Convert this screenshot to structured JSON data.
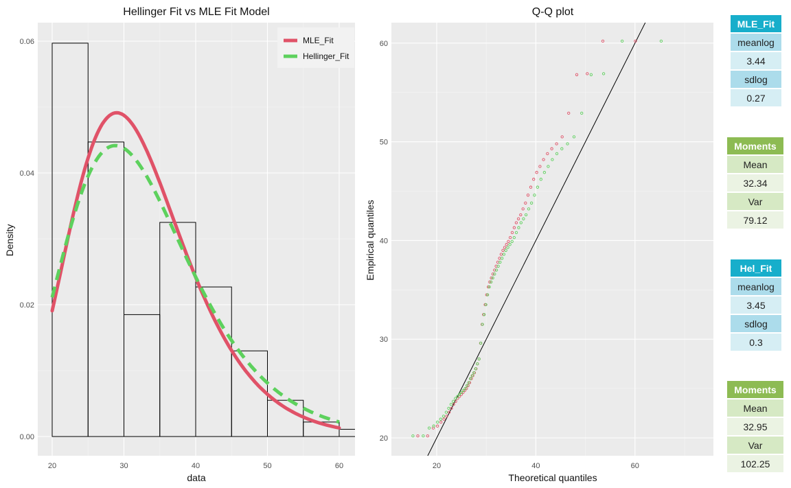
{
  "colors": {
    "mle": "#e05268",
    "hellinger": "#5dd15d",
    "panel": "#ebebeb"
  },
  "chart_data": [
    {
      "type": "bar",
      "title": "Hellinger Fit vs MLE Fit Model",
      "xlabel": "data",
      "ylabel": "Density",
      "xlim": [
        20,
        62
      ],
      "ylim": [
        0,
        0.06
      ],
      "xticks": [
        20,
        30,
        40,
        50,
        60
      ],
      "yticks": [
        "0.00",
        "0.02",
        "0.04",
        "0.06"
      ],
      "histogram": {
        "bin_edges": [
          20,
          25,
          30,
          35,
          40,
          45,
          50,
          55,
          60,
          65
        ],
        "density": [
          0.0597,
          0.0447,
          0.0185,
          0.0325,
          0.0227,
          0.013,
          0.0055,
          0.0022,
          0.0011
        ]
      },
      "legend": {
        "position": "top-right",
        "entries": [
          "MLE_Fit",
          "Hellinger_Fit"
        ]
      },
      "series": [
        {
          "name": "MLE_Fit",
          "meanlog": 3.44,
          "sdlog": 0.27,
          "x_range": [
            20,
            60
          ]
        },
        {
          "name": "Hellinger_Fit",
          "meanlog": 3.45,
          "sdlog": 0.3,
          "x_range": [
            20,
            60
          ]
        }
      ]
    },
    {
      "type": "scatter",
      "title": "Q-Q plot",
      "xlabel": "Theoretical quantiles",
      "ylabel": "Empirical quantiles",
      "xlim": [
        10,
        75
      ],
      "ylim": [
        18,
        62
      ],
      "xticks": [
        20,
        40,
        60
      ],
      "yticks": [
        20,
        30,
        40,
        50,
        60
      ],
      "reference_line": {
        "slope": 1,
        "intercept": 0
      },
      "empirical_sorted": [
        20.2,
        20.2,
        21,
        21.2,
        21.6,
        21.9,
        22.2,
        22.6,
        23,
        23.4,
        23.7,
        24,
        24.2,
        24.4,
        24.6,
        24.8,
        25,
        25.3,
        25.6,
        26,
        26.3,
        26.6,
        27,
        27.5,
        28,
        29.6,
        31.5,
        32.5,
        33.5,
        34.5,
        35.3,
        35.8,
        36.2,
        36.6,
        37,
        37.4,
        37.8,
        38.2,
        38.6,
        39,
        39.3,
        39.6,
        39.9,
        40.3,
        40.8,
        41.3,
        41.8,
        42.2,
        42.6,
        43.2,
        43.8,
        44.6,
        45.4,
        46.2,
        46.9,
        47.5,
        48.2,
        48.8,
        49.3,
        49.8,
        50.5,
        52.9,
        56.8,
        56.9,
        60.2,
        60.2
      ],
      "series": [
        {
          "name": "MLE_Fit",
          "meanlog": 3.44,
          "sdlog": 0.27
        },
        {
          "name": "Hellinger_Fit",
          "meanlog": 3.45,
          "sdlog": 0.3
        }
      ]
    }
  ],
  "tables": {
    "mle_fit": {
      "title": "MLE_Fit",
      "k1": "meanlog",
      "v1": "3.44",
      "k2": "sdlog",
      "v2": "0.27"
    },
    "mle_moments": {
      "title": "Moments",
      "k1": "Mean",
      "v1": "32.34",
      "k2": "Var",
      "v2": "79.12"
    },
    "hel_fit": {
      "title": "Hel_Fit",
      "k1": "meanlog",
      "v1": "3.45",
      "k2": "sdlog",
      "v2": "0.3"
    },
    "hel_moments": {
      "title": "Moments",
      "k1": "Mean",
      "v1": "32.95",
      "k2": "Var",
      "v2": "102.25"
    }
  }
}
